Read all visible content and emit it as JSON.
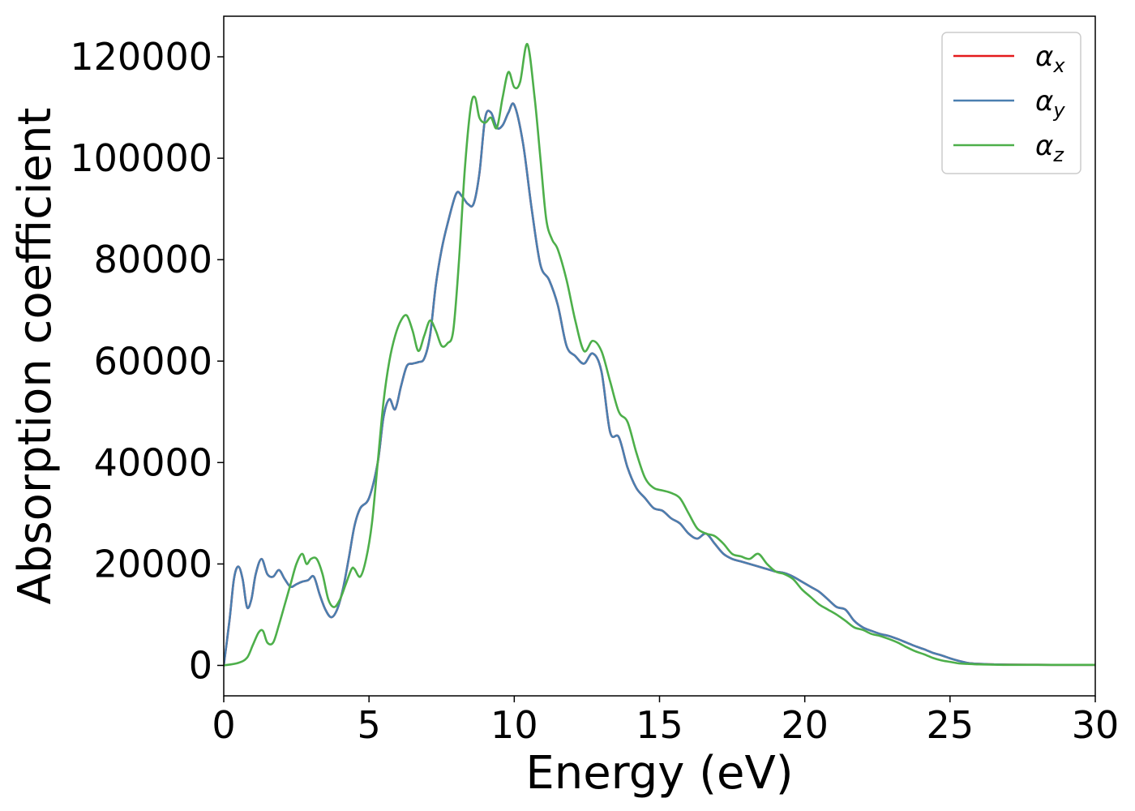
{
  "chart_data": {
    "type": "line",
    "title": "",
    "xlabel": "Energy (eV)",
    "ylabel": "Absorption coefficient",
    "xlim": [
      0,
      30
    ],
    "ylim": [
      -6000,
      128000
    ],
    "xticks": [
      0,
      5,
      10,
      15,
      20,
      25,
      30
    ],
    "yticks": [
      0,
      20000,
      40000,
      60000,
      80000,
      100000,
      120000
    ],
    "grid": false,
    "legend_position": "top-right",
    "series": [
      {
        "name": "αx",
        "legend_symbol": "α",
        "legend_sub": "x",
        "color": "#e41a1c",
        "x": [
          0,
          0.2,
          0.35,
          0.5,
          0.65,
          0.8,
          0.95,
          1.1,
          1.3,
          1.5,
          1.7,
          1.9,
          2.1,
          2.3,
          2.5,
          2.7,
          2.9,
          3.1,
          3.3,
          3.5,
          3.7,
          3.9,
          4.1,
          4.3,
          4.5,
          4.7,
          5.0,
          5.3,
          5.5,
          5.7,
          5.9,
          6.1,
          6.3,
          6.5,
          6.7,
          6.9,
          7.1,
          7.3,
          7.5,
          7.7,
          8.0,
          8.2,
          8.4,
          8.6,
          8.8,
          9.0,
          9.2,
          9.4,
          9.6,
          9.8,
          10.0,
          10.3,
          10.6,
          10.9,
          11.2,
          11.5,
          11.8,
          12.1,
          12.4,
          12.7,
          13.0,
          13.3,
          13.6,
          13.9,
          14.2,
          14.5,
          14.8,
          15.1,
          15.4,
          15.7,
          16.0,
          16.3,
          16.6,
          16.9,
          17.2,
          17.5,
          17.8,
          18.1,
          18.4,
          18.7,
          19.0,
          19.3,
          19.6,
          19.9,
          20.2,
          20.5,
          20.8,
          21.1,
          21.4,
          21.7,
          22.0,
          22.3,
          22.6,
          22.9,
          23.2,
          23.5,
          23.8,
          24.1,
          24.4,
          24.7,
          25.0,
          25.3,
          25.6,
          26.0,
          26.5,
          27.0,
          28.0,
          29.0,
          30.0
        ],
        "y": [
          0,
          9000,
          17000,
          19500,
          17000,
          11500,
          13000,
          18000,
          21000,
          18000,
          17500,
          18800,
          17000,
          15500,
          16000,
          16500,
          16800,
          17500,
          14000,
          11000,
          9500,
          11000,
          15000,
          21000,
          27500,
          31000,
          33000,
          40000,
          49000,
          52500,
          50500,
          55000,
          59000,
          59500,
          59800,
          60500,
          65000,
          75000,
          82000,
          87000,
          93000,
          92500,
          91000,
          91000,
          97000,
          108000,
          109000,
          106000,
          106500,
          109000,
          110500,
          103000,
          90000,
          79000,
          76000,
          71000,
          63000,
          61000,
          59500,
          61500,
          58000,
          46000,
          45000,
          39000,
          35000,
          33000,
          31000,
          30500,
          29000,
          28000,
          26000,
          25000,
          26000,
          24000,
          22000,
          21000,
          20500,
          20000,
          19500,
          19000,
          18500,
          18200,
          17500,
          16500,
          15500,
          14500,
          13000,
          11500,
          11000,
          8800,
          7500,
          6800,
          6200,
          5800,
          5200,
          4500,
          3800,
          3200,
          2500,
          2000,
          1400,
          900,
          500,
          300,
          200,
          150,
          120,
          100,
          100
        ]
      },
      {
        "name": "αy",
        "legend_symbol": "α",
        "legend_sub": "y",
        "color": "#4a7fb0",
        "x": [
          0,
          0.2,
          0.35,
          0.5,
          0.65,
          0.8,
          0.95,
          1.1,
          1.3,
          1.5,
          1.7,
          1.9,
          2.1,
          2.3,
          2.5,
          2.7,
          2.9,
          3.1,
          3.3,
          3.5,
          3.7,
          3.9,
          4.1,
          4.3,
          4.5,
          4.7,
          5.0,
          5.3,
          5.5,
          5.7,
          5.9,
          6.1,
          6.3,
          6.5,
          6.7,
          6.9,
          7.1,
          7.3,
          7.5,
          7.7,
          8.0,
          8.2,
          8.4,
          8.6,
          8.8,
          9.0,
          9.2,
          9.4,
          9.6,
          9.8,
          10.0,
          10.3,
          10.6,
          10.9,
          11.2,
          11.5,
          11.8,
          12.1,
          12.4,
          12.7,
          13.0,
          13.3,
          13.6,
          13.9,
          14.2,
          14.5,
          14.8,
          15.1,
          15.4,
          15.7,
          16.0,
          16.3,
          16.6,
          16.9,
          17.2,
          17.5,
          17.8,
          18.1,
          18.4,
          18.7,
          19.0,
          19.3,
          19.6,
          19.9,
          20.2,
          20.5,
          20.8,
          21.1,
          21.4,
          21.7,
          22.0,
          22.3,
          22.6,
          22.9,
          23.2,
          23.5,
          23.8,
          24.1,
          24.4,
          24.7,
          25.0,
          25.3,
          25.6,
          26.0,
          26.5,
          27.0,
          28.0,
          29.0,
          30.0
        ],
        "y": [
          0,
          9000,
          17000,
          19500,
          17000,
          11500,
          13000,
          18000,
          21000,
          18000,
          17500,
          18800,
          17000,
          15500,
          16000,
          16500,
          16800,
          17500,
          14000,
          11000,
          9500,
          11000,
          15000,
          21000,
          27500,
          31000,
          33000,
          40000,
          49000,
          52500,
          50500,
          55000,
          59000,
          59500,
          59800,
          60500,
          65000,
          75000,
          82000,
          87000,
          93000,
          92500,
          91000,
          91000,
          97000,
          108000,
          109000,
          106000,
          106500,
          109000,
          110500,
          103000,
          90000,
          79000,
          76000,
          71000,
          63000,
          61000,
          59500,
          61500,
          58000,
          46000,
          45000,
          39000,
          35000,
          33000,
          31000,
          30500,
          29000,
          28000,
          26000,
          25000,
          26000,
          24000,
          22000,
          21000,
          20500,
          20000,
          19500,
          19000,
          18500,
          18200,
          17500,
          16500,
          15500,
          14500,
          13000,
          11500,
          11000,
          8800,
          7500,
          6800,
          6200,
          5800,
          5200,
          4500,
          3800,
          3200,
          2500,
          2000,
          1400,
          900,
          500,
          300,
          200,
          150,
          120,
          100,
          100
        ]
      },
      {
        "name": "αz",
        "legend_symbol": "α",
        "legend_sub": "z",
        "color": "#4daf4a",
        "x": [
          0,
          0.5,
          0.8,
          1.0,
          1.2,
          1.35,
          1.5,
          1.7,
          1.9,
          2.1,
          2.3,
          2.5,
          2.7,
          2.85,
          3.0,
          3.2,
          3.4,
          3.6,
          3.8,
          4.0,
          4.2,
          4.4,
          4.5,
          4.7,
          4.9,
          5.1,
          5.3,
          5.5,
          5.7,
          5.9,
          6.1,
          6.3,
          6.5,
          6.7,
          6.9,
          7.1,
          7.3,
          7.5,
          7.7,
          7.9,
          8.1,
          8.3,
          8.5,
          8.65,
          8.8,
          9.0,
          9.2,
          9.4,
          9.6,
          9.8,
          10.0,
          10.2,
          10.45,
          10.7,
          10.9,
          11.1,
          11.3,
          11.5,
          11.8,
          12.1,
          12.4,
          12.7,
          13.0,
          13.3,
          13.6,
          13.9,
          14.2,
          14.5,
          14.8,
          15.1,
          15.4,
          15.7,
          16.0,
          16.3,
          16.6,
          16.9,
          17.2,
          17.5,
          17.8,
          18.1,
          18.4,
          18.7,
          19.0,
          19.3,
          19.6,
          19.9,
          20.2,
          20.5,
          20.8,
          21.1,
          21.4,
          21.7,
          22.0,
          22.3,
          22.6,
          22.9,
          23.2,
          23.5,
          23.8,
          24.1,
          24.4,
          24.7,
          25.0,
          25.3,
          25.6,
          26.0,
          26.5,
          27.0,
          28.0,
          29.0,
          30.0
        ],
        "y": [
          0,
          500,
          1500,
          4000,
          6500,
          6800,
          4500,
          4500,
          8000,
          12000,
          16000,
          20000,
          22000,
          20000,
          21000,
          21000,
          18000,
          13000,
          11500,
          13000,
          16000,
          19000,
          19000,
          17500,
          21000,
          28000,
          40000,
          52000,
          60000,
          65000,
          68000,
          69000,
          66000,
          62000,
          65000,
          68000,
          66000,
          63000,
          63500,
          66000,
          80000,
          98000,
          110000,
          112000,
          108000,
          107000,
          108000,
          106000,
          112000,
          117000,
          114000,
          115000,
          122500,
          112000,
          100000,
          88000,
          84000,
          82000,
          76000,
          68000,
          62000,
          64000,
          62000,
          56000,
          50000,
          48000,
          42000,
          37000,
          35000,
          34500,
          34000,
          33000,
          30000,
          27000,
          26000,
          25500,
          24000,
          22000,
          21500,
          21000,
          22000,
          20000,
          18500,
          18000,
          17000,
          15000,
          13500,
          12000,
          11000,
          10000,
          8800,
          7500,
          7000,
          6200,
          5800,
          5200,
          4500,
          3600,
          2800,
          2200,
          1500,
          1000,
          700,
          400,
          300,
          200,
          150,
          100,
          100,
          100,
          100
        ]
      }
    ]
  }
}
